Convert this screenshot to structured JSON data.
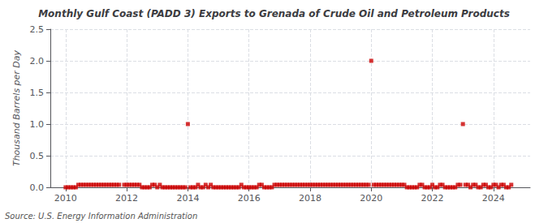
{
  "chart_data": {
    "type": "scatter",
    "title": "Monthly Gulf Coast (PADD 3) Exports to Grenada of Crude Oil and Petroleum Products",
    "ylabel": "Thousand Barrels per Day",
    "annotations": [
      "Source: U.S. Energy Information Administration"
    ],
    "color": "#cc0000",
    "marker": "square",
    "grid": true,
    "xlim": [
      2009.5,
      2025.2
    ],
    "xticks": [
      2010,
      2012,
      2014,
      2016,
      2018,
      2020,
      2022,
      2024
    ],
    "ylim": [
      0,
      2.5
    ],
    "yticks": [
      {
        "value": 0.0,
        "label": "0.0"
      },
      0.5,
      {
        "value": 1.0,
        "label": "1.0"
      },
      1.5,
      {
        "value": 2.0,
        "label": "2.0"
      },
      2.5
    ],
    "x": [
      2010.0,
      2010.083,
      2010.167,
      2010.25,
      2010.333,
      2010.417,
      2010.5,
      2010.583,
      2010.667,
      2010.75,
      2010.833,
      2010.917,
      2011.0,
      2011.083,
      2011.167,
      2011.25,
      2011.333,
      2011.417,
      2011.5,
      2011.583,
      2011.667,
      2011.75,
      2011.917,
      2012.0,
      2012.083,
      2012.167,
      2012.25,
      2012.333,
      2012.417,
      2012.5,
      2012.583,
      2012.667,
      2012.75,
      2012.833,
      2012.917,
      2013.0,
      2013.083,
      2013.167,
      2013.25,
      2013.333,
      2013.417,
      2013.5,
      2013.583,
      2013.667,
      2013.75,
      2013.833,
      2013.917,
      2014.0,
      2014.083,
      2014.167,
      2014.25,
      2014.333,
      2014.417,
      2014.5,
      2014.583,
      2014.667,
      2014.75,
      2014.833,
      2014.917,
      2015.0,
      2015.083,
      2015.167,
      2015.25,
      2015.333,
      2015.417,
      2015.5,
      2015.583,
      2015.667,
      2015.75,
      2015.833,
      2015.917,
      2016.0,
      2016.083,
      2016.167,
      2016.25,
      2016.333,
      2016.417,
      2016.5,
      2016.583,
      2016.667,
      2016.75,
      2016.833,
      2016.917,
      2017.0,
      2017.083,
      2017.167,
      2017.25,
      2017.333,
      2017.417,
      2017.5,
      2017.583,
      2017.667,
      2017.75,
      2017.833,
      2017.917,
      2018.0,
      2018.083,
      2018.167,
      2018.25,
      2018.333,
      2018.417,
      2018.5,
      2018.583,
      2018.667,
      2018.75,
      2018.833,
      2018.917,
      2019.0,
      2019.083,
      2019.167,
      2019.25,
      2019.333,
      2019.417,
      2019.5,
      2019.583,
      2019.667,
      2019.75,
      2019.833,
      2019.917,
      2020.0,
      2020.083,
      2020.167,
      2020.25,
      2020.333,
      2020.417,
      2020.5,
      2020.583,
      2020.667,
      2020.75,
      2020.833,
      2020.917,
      2021.0,
      2021.083,
      2021.167,
      2021.25,
      2021.333,
      2021.417,
      2021.5,
      2021.583,
      2021.667,
      2021.75,
      2021.833,
      2021.917,
      2022.0,
      2022.083,
      2022.167,
      2022.25,
      2022.333,
      2022.417,
      2022.5,
      2022.583,
      2022.667,
      2022.75,
      2022.833,
      2022.917,
      2023.0,
      2023.083,
      2023.167,
      2023.25,
      2023.333,
      2023.417,
      2023.5,
      2023.583,
      2023.667,
      2023.75,
      2023.833,
      2023.917,
      2024.0,
      2024.083,
      2024.167,
      2024.25,
      2024.333,
      2024.417,
      2024.5,
      2024.583
    ],
    "values": [
      0.0,
      0.0,
      0.0,
      0.0,
      0.0,
      0.04,
      0.04,
      0.04,
      0.04,
      0.04,
      0.04,
      0.04,
      0.04,
      0.04,
      0.04,
      0.04,
      0.04,
      0.04,
      0.04,
      0.04,
      0.04,
      0.04,
      0.04,
      0.04,
      0.04,
      0.04,
      0.04,
      0.04,
      0.04,
      0.0,
      0.0,
      0.0,
      0.0,
      0.04,
      0.04,
      0.0,
      0.04,
      0.0,
      0.0,
      0.0,
      0.0,
      0.0,
      0.0,
      0.0,
      0.0,
      0.0,
      0.0,
      1.0,
      0.0,
      0.0,
      0.0,
      0.04,
      0.0,
      0.0,
      0.04,
      0.0,
      0.04,
      0.0,
      0.0,
      0.0,
      0.0,
      0.0,
      0.0,
      0.0,
      0.0,
      0.0,
      0.0,
      0.0,
      0.04,
      0.0,
      0.0,
      0.0,
      0.0,
      0.0,
      0.0,
      0.04,
      0.04,
      0.0,
      0.0,
      0.0,
      0.0,
      0.04,
      0.04,
      0.04,
      0.04,
      0.04,
      0.04,
      0.04,
      0.04,
      0.04,
      0.04,
      0.04,
      0.04,
      0.04,
      0.04,
      0.04,
      0.04,
      0.04,
      0.04,
      0.04,
      0.04,
      0.04,
      0.04,
      0.04,
      0.04,
      0.04,
      0.04,
      0.04,
      0.04,
      0.04,
      0.04,
      0.04,
      0.04,
      0.04,
      0.04,
      0.04,
      0.04,
      0.04,
      0.04,
      2.0,
      0.04,
      0.04,
      0.04,
      0.04,
      0.04,
      0.04,
      0.04,
      0.04,
      0.04,
      0.04,
      0.04,
      0.04,
      0.04,
      0.0,
      0.0,
      0.0,
      0.0,
      0.0,
      0.04,
      0.04,
      0.0,
      0.0,
      0.0,
      0.04,
      0.0,
      0.0,
      0.04,
      0.04,
      0.0,
      0.0,
      0.0,
      0.0,
      0.0,
      0.04,
      0.04,
      1.0,
      0.04,
      0.04,
      0.0,
      0.04,
      0.04,
      0.0,
      0.0,
      0.04,
      0.04,
      0.0,
      0.0,
      0.04,
      0.04,
      0.0,
      0.04,
      0.04,
      0.0,
      0.0,
      0.04
    ]
  }
}
